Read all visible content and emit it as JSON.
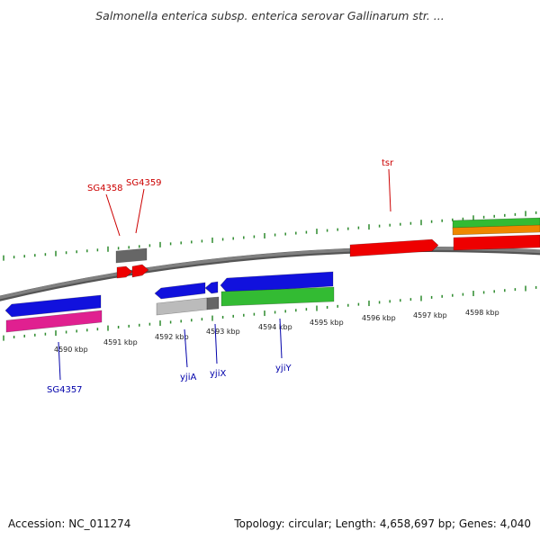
{
  "title": "Salmonella enterica subsp. enterica serovar Gallinarum str. ...",
  "footer": {
    "accession": "Accession: NC_011274",
    "summary": "Topology: circular; Length: 4,658,697 bp; Genes: 4,040"
  },
  "colors": {
    "backbone": "#808080",
    "tick": "#2e8b2e",
    "forward_label": "#cc0000",
    "reverse_label": "#0000aa",
    "red": "#ee0000",
    "blue": "#1111dd",
    "green": "#33bb33",
    "magenta": "#e02090",
    "orange": "#ee8800",
    "dark_grey": "#666666",
    "light_grey": "#bbbbbb"
  },
  "ticks": [
    {
      "label": "4590 kbp"
    },
    {
      "label": "4591 kbp"
    },
    {
      "label": "4592 kbp"
    },
    {
      "label": "4593 kbp"
    },
    {
      "label": "4594 kbp"
    },
    {
      "label": "4595 kbp"
    },
    {
      "label": "4596 kbp"
    },
    {
      "label": "4597 kbp"
    },
    {
      "label": "4598 kbp"
    }
  ],
  "gene_labels": {
    "forward": [
      "SG4358",
      "SG4359",
      "tsr"
    ],
    "reverse": [
      "SG4357",
      "yjiA",
      "yjiX",
      "yjiY"
    ]
  },
  "features": [
    {
      "name": "SG4357",
      "color": "blue",
      "strand": "reverse"
    },
    {
      "name": "SG4357 (product track)",
      "color": "magenta",
      "strand": "reverse"
    },
    {
      "name": "SG4358",
      "color": "dark_grey",
      "strand": "forward"
    },
    {
      "name": "SG4358",
      "color": "red",
      "strand": "forward"
    },
    {
      "name": "SG4359",
      "color": "red",
      "strand": "forward"
    },
    {
      "name": "yjiA",
      "color": "blue",
      "strand": "reverse"
    },
    {
      "name": "yjiA (product track)",
      "color": "light_grey",
      "strand": "reverse"
    },
    {
      "name": "yjiX",
      "color": "blue",
      "strand": "reverse"
    },
    {
      "name": "yjiX (product track)",
      "color": "dark_grey",
      "strand": "reverse"
    },
    {
      "name": "yjiY",
      "color": "blue",
      "strand": "reverse"
    },
    {
      "name": "yjiY (product track)",
      "color": "green",
      "strand": "reverse"
    },
    {
      "name": "tsr",
      "color": "red",
      "strand": "forward"
    },
    {
      "name": "next gene (product track, green)",
      "color": "green",
      "strand": "forward"
    },
    {
      "name": "next gene (product track, orange)",
      "color": "orange",
      "strand": "forward"
    },
    {
      "name": "next gene",
      "color": "red",
      "strand": "forward"
    }
  ]
}
